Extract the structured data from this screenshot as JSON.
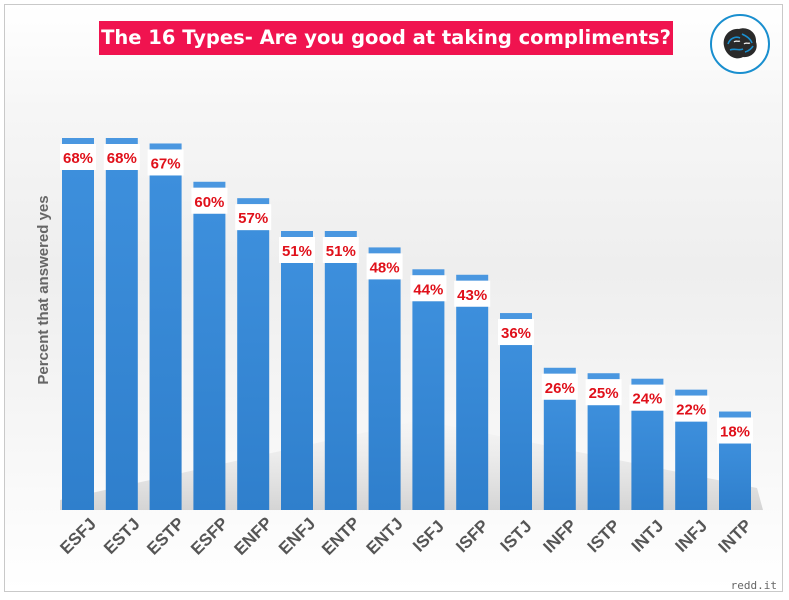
{
  "title": "The 16 Types- Are you good at taking compliments?",
  "watermark": "redd.it",
  "logo": {
    "icon": "brain-circle-logo-icon",
    "ring_color": "#1a8fcf"
  },
  "colors": {
    "bar": "#3a8ad6",
    "bar_light": "#6aaee8",
    "label_text": "#e0101a",
    "title_bg": "#f0134f"
  },
  "chart_data": {
    "type": "bar",
    "title": "The 16 Types- Are you good at taking compliments?",
    "xlabel": "",
    "ylabel": "Percent that answered yes",
    "categories": [
      "ESFJ",
      "ESTJ",
      "ESTP",
      "ESFP",
      "ENFP",
      "ENFJ",
      "ENTP",
      "ENTJ",
      "ISFJ",
      "ISFP",
      "ISTJ",
      "INFP",
      "ISTP",
      "INTJ",
      "INFJ",
      "INTP"
    ],
    "values": [
      68,
      68,
      67,
      60,
      57,
      51,
      51,
      48,
      44,
      43,
      36,
      26,
      25,
      24,
      22,
      18
    ],
    "value_labels": [
      "68%",
      "68%",
      "67%",
      "60%",
      "57%",
      "51%",
      "51%",
      "48%",
      "44%",
      "43%",
      "36%",
      "26%",
      "25%",
      "24%",
      "22%",
      "18%"
    ],
    "ylim": [
      0,
      70
    ],
    "grid": false,
    "legend": "none"
  }
}
